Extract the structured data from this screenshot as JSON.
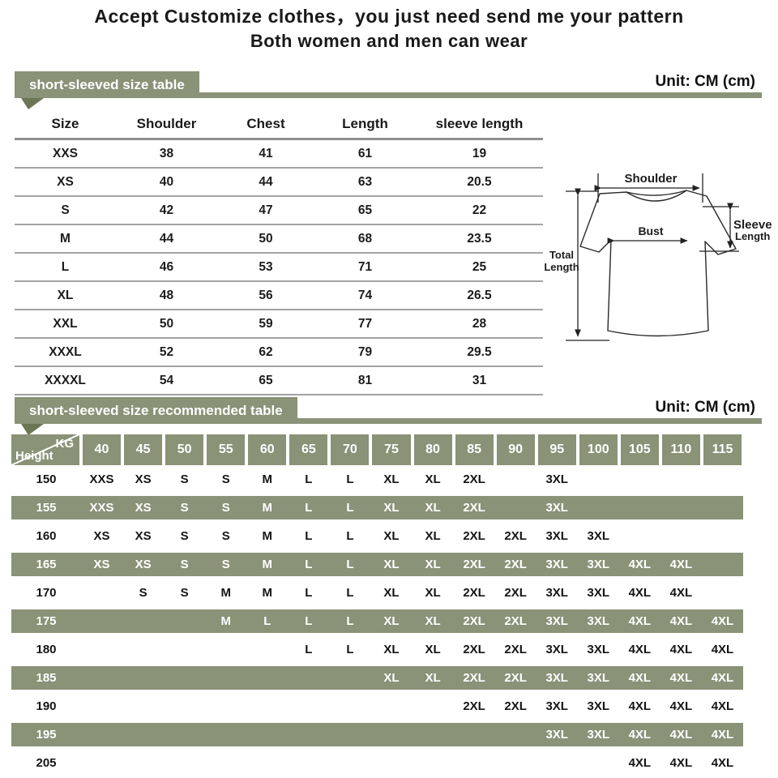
{
  "title": {
    "line1": "Accept Customize clothes，you just need send me your pattern",
    "line2": "Both women and men can wear"
  },
  "colors": {
    "green": "#8a9277",
    "green_dark": "#6d7557",
    "line_gray": "#a3a3a3"
  },
  "size_table": {
    "section_title": "short-sleeved size table",
    "unit_label": "Unit: CM (cm)",
    "columns": [
      "Size",
      "Shoulder",
      "Chest",
      "Length",
      "sleeve length"
    ],
    "rows": [
      [
        "XXS",
        "38",
        "41",
        "61",
        "19"
      ],
      [
        "XS",
        "40",
        "44",
        "63",
        "20.5"
      ],
      [
        "S",
        "42",
        "47",
        "65",
        "22"
      ],
      [
        "M",
        "44",
        "50",
        "68",
        "23.5"
      ],
      [
        "L",
        "46",
        "53",
        "71",
        "25"
      ],
      [
        "XL",
        "48",
        "56",
        "74",
        "26.5"
      ],
      [
        "XXL",
        "50",
        "59",
        "77",
        "28"
      ],
      [
        "XXXL",
        "52",
        "62",
        "79",
        "29.5"
      ],
      [
        "XXXXL",
        "54",
        "65",
        "81",
        "31"
      ]
    ]
  },
  "diagram": {
    "labels": {
      "shoulder": "Shoulder",
      "sleeve_line1": "Sleeve",
      "sleeve_line2": "Length",
      "bust": "Bust",
      "total_line1": "Total",
      "total_line2": "Length"
    }
  },
  "recommended_table": {
    "section_title": "short-sleeved size recommended table",
    "unit_label": "Unit: CM (cm)",
    "corner": {
      "top_right": "KG",
      "bottom_left": "Height"
    },
    "weights": [
      "40",
      "45",
      "50",
      "55",
      "60",
      "65",
      "70",
      "75",
      "80",
      "85",
      "90",
      "95",
      "100",
      "105",
      "110",
      "115"
    ],
    "rows": [
      {
        "height": "150",
        "highlight": false,
        "cells": [
          "XXS",
          "XS",
          "S",
          "S",
          "M",
          "L",
          "L",
          "XL",
          "XL",
          "2XL",
          "",
          "3XL",
          "",
          "",
          "",
          ""
        ]
      },
      {
        "height": "155",
        "highlight": true,
        "cells": [
          "XXS",
          "XS",
          "S",
          "S",
          "M",
          "L",
          "L",
          "XL",
          "XL",
          "2XL",
          "",
          "3XL",
          "",
          "",
          "",
          ""
        ]
      },
      {
        "height": "160",
        "highlight": false,
        "cells": [
          "XS",
          "XS",
          "S",
          "S",
          "M",
          "L",
          "L",
          "XL",
          "XL",
          "2XL",
          "2XL",
          "3XL",
          "3XL",
          "",
          "",
          ""
        ]
      },
      {
        "height": "165",
        "highlight": true,
        "cells": [
          "XS",
          "XS",
          "S",
          "S",
          "M",
          "L",
          "L",
          "XL",
          "XL",
          "2XL",
          "2XL",
          "3XL",
          "3XL",
          "4XL",
          "4XL",
          ""
        ]
      },
      {
        "height": "170",
        "highlight": false,
        "cells": [
          "",
          "S",
          "S",
          "M",
          "M",
          "L",
          "L",
          "XL",
          "XL",
          "2XL",
          "2XL",
          "3XL",
          "3XL",
          "4XL",
          "4XL",
          ""
        ]
      },
      {
        "height": "175",
        "highlight": true,
        "cells": [
          "",
          "",
          "",
          "M",
          "L",
          "L",
          "L",
          "XL",
          "XL",
          "2XL",
          "2XL",
          "3XL",
          "3XL",
          "4XL",
          "4XL",
          "4XL"
        ]
      },
      {
        "height": "180",
        "highlight": false,
        "cells": [
          "",
          "",
          "",
          "",
          "",
          "L",
          "L",
          "XL",
          "XL",
          "2XL",
          "2XL",
          "3XL",
          "3XL",
          "4XL",
          "4XL",
          "4XL"
        ]
      },
      {
        "height": "185",
        "highlight": true,
        "cells": [
          "",
          "",
          "",
          "",
          "",
          "",
          "",
          "XL",
          "XL",
          "2XL",
          "2XL",
          "3XL",
          "3XL",
          "4XL",
          "4XL",
          "4XL"
        ]
      },
      {
        "height": "190",
        "highlight": false,
        "cells": [
          "",
          "",
          "",
          "",
          "",
          "",
          "",
          "",
          "",
          "2XL",
          "2XL",
          "3XL",
          "3XL",
          "4XL",
          "4XL",
          "4XL"
        ]
      },
      {
        "height": "195",
        "highlight": true,
        "cells": [
          "",
          "",
          "",
          "",
          "",
          "",
          "",
          "",
          "",
          "",
          "",
          "3XL",
          "3XL",
          "4XL",
          "4XL",
          "4XL"
        ]
      },
      {
        "height": "205",
        "highlight": false,
        "cells": [
          "",
          "",
          "",
          "",
          "",
          "",
          "",
          "",
          "",
          "",
          "",
          "",
          "",
          "4XL",
          "4XL",
          "4XL"
        ]
      }
    ]
  }
}
